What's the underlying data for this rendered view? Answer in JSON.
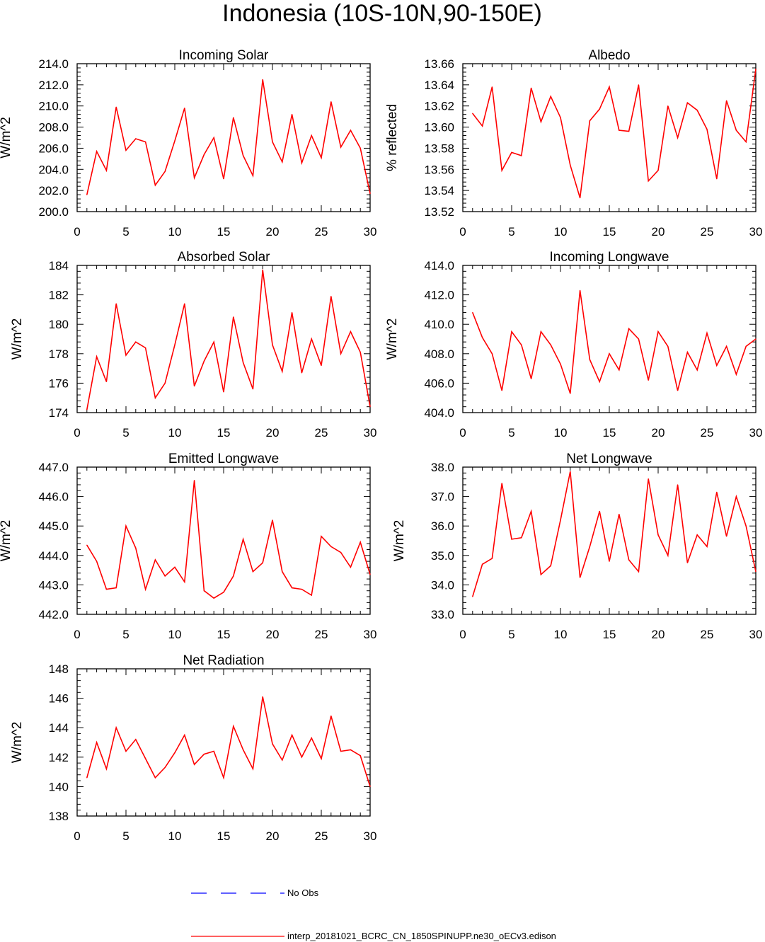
{
  "page_title": "Indonesia (10S-10N,90-150E)",
  "colors": {
    "model": "#ff0000",
    "obs": "#0000ff",
    "axis": "#000000"
  },
  "legend": {
    "obs_label": "No Obs",
    "model_label": "interp_20181021_BCRC_CN_1850SPINUPP.ne30_oECv3.edison"
  },
  "chart_data": [
    {
      "id": "incoming-solar",
      "type": "line",
      "title": "Incoming Solar",
      "xlabel": "",
      "ylabel": "W/m^2",
      "xlim": [
        0,
        30
      ],
      "ylim": [
        200,
        214
      ],
      "xticks": [
        "0",
        "5",
        "10",
        "15",
        "20",
        "25",
        "30"
      ],
      "yticks": [
        "200.0",
        "202.0",
        "204.0",
        "206.0",
        "208.0",
        "210.0",
        "212.0",
        "214.0"
      ],
      "series": [
        {
          "name": "interp_20181021_BCRC_CN_1850SPINUPP.ne30_oECv3.edison",
          "x": [
            1,
            2,
            3,
            4,
            5,
            6,
            7,
            8,
            9,
            10,
            11,
            12,
            13,
            14,
            15,
            16,
            17,
            18,
            19,
            20,
            21,
            22,
            23,
            24,
            25,
            26,
            27,
            28,
            29,
            30
          ],
          "values": [
            201.6,
            205.7,
            203.9,
            209.9,
            205.8,
            206.9,
            206.6,
            202.5,
            203.8,
            206.7,
            209.8,
            203.2,
            205.4,
            207.0,
            203.1,
            208.9,
            205.3,
            203.4,
            212.5,
            206.6,
            204.7,
            209.2,
            204.6,
            207.2,
            205.1,
            210.4,
            206.1,
            207.7,
            206.0,
            201.7
          ]
        }
      ]
    },
    {
      "id": "albedo",
      "type": "line",
      "title": "Albedo",
      "xlabel": "",
      "ylabel": "% reflected",
      "xlim": [
        0,
        30
      ],
      "ylim": [
        13.52,
        13.66
      ],
      "xticks": [
        "0",
        "5",
        "10",
        "15",
        "20",
        "25",
        "30"
      ],
      "yticks": [
        "13.52",
        "13.54",
        "13.56",
        "13.58",
        "13.60",
        "13.62",
        "13.64",
        "13.66"
      ],
      "series": [
        {
          "name": "interp_20181021_BCRC_CN_1850SPINUPP.ne30_oECv3.edison",
          "x": [
            1,
            2,
            3,
            4,
            5,
            6,
            7,
            8,
            9,
            10,
            11,
            12,
            13,
            14,
            15,
            16,
            17,
            18,
            19,
            20,
            21,
            22,
            23,
            24,
            25,
            26,
            27,
            28,
            29,
            30
          ],
          "values": [
            13.613,
            13.601,
            13.638,
            13.559,
            13.576,
            13.573,
            13.637,
            13.605,
            13.629,
            13.609,
            13.564,
            13.533,
            13.606,
            13.617,
            13.638,
            13.597,
            13.596,
            13.64,
            13.549,
            13.559,
            13.62,
            13.59,
            13.623,
            13.616,
            13.598,
            13.551,
            13.625,
            13.597,
            13.586,
            13.655
          ]
        }
      ]
    },
    {
      "id": "absorbed-solar",
      "type": "line",
      "title": "Absorbed Solar",
      "xlabel": "",
      "ylabel": "W/m^2",
      "xlim": [
        0,
        30
      ],
      "ylim": [
        174,
        184
      ],
      "xticks": [
        "0",
        "5",
        "10",
        "15",
        "20",
        "25",
        "30"
      ],
      "yticks": [
        "174",
        "176",
        "178",
        "180",
        "182",
        "184"
      ],
      "series": [
        {
          "name": "interp_20181021_BCRC_CN_1850SPINUPP.ne30_oECv3.edison",
          "x": [
            1,
            2,
            3,
            4,
            5,
            6,
            7,
            8,
            9,
            10,
            11,
            12,
            13,
            14,
            15,
            16,
            17,
            18,
            19,
            20,
            21,
            22,
            23,
            24,
            25,
            26,
            27,
            28,
            29,
            30
          ],
          "values": [
            174.2,
            177.8,
            176.1,
            181.4,
            177.9,
            178.8,
            178.4,
            175.0,
            176.0,
            178.6,
            181.4,
            175.8,
            177.5,
            178.8,
            175.4,
            180.5,
            177.4,
            175.6,
            183.7,
            178.6,
            176.8,
            180.8,
            176.7,
            179.0,
            177.2,
            181.9,
            178.0,
            179.5,
            178.1,
            174.4
          ]
        }
      ]
    },
    {
      "id": "incoming-longwave",
      "type": "line",
      "title": "Incoming Longwave",
      "xlabel": "",
      "ylabel": "W/m^2",
      "xlim": [
        0,
        30
      ],
      "ylim": [
        404,
        414
      ],
      "xticks": [
        "0",
        "5",
        "10",
        "15",
        "20",
        "25",
        "30"
      ],
      "yticks": [
        "404.0",
        "406.0",
        "408.0",
        "410.0",
        "412.0",
        "414.0"
      ],
      "series": [
        {
          "name": "interp_20181021_BCRC_CN_1850SPINUPP.ne30_oECv3.edison",
          "x": [
            1,
            2,
            3,
            4,
            5,
            6,
            7,
            8,
            9,
            10,
            11,
            12,
            13,
            14,
            15,
            16,
            17,
            18,
            19,
            20,
            21,
            22,
            23,
            24,
            25,
            26,
            27,
            28,
            29,
            30
          ],
          "values": [
            410.8,
            409.1,
            408.0,
            405.5,
            409.5,
            408.6,
            406.3,
            409.5,
            408.6,
            407.3,
            405.3,
            412.3,
            407.6,
            406.1,
            408.0,
            406.9,
            409.7,
            409.0,
            406.2,
            409.5,
            408.5,
            405.5,
            408.1,
            406.9,
            409.4,
            407.2,
            408.5,
            406.6,
            408.5,
            409.0
          ]
        }
      ]
    },
    {
      "id": "emitted-longwave",
      "type": "line",
      "title": "Emitted Longwave",
      "xlabel": "",
      "ylabel": "W/m^2",
      "xlim": [
        0,
        30
      ],
      "ylim": [
        442,
        447
      ],
      "xticks": [
        "0",
        "5",
        "10",
        "15",
        "20",
        "25",
        "30"
      ],
      "yticks": [
        "442.0",
        "443.0",
        "444.0",
        "445.0",
        "446.0",
        "447.0"
      ],
      "series": [
        {
          "name": "interp_20181021_BCRC_CN_1850SPINUPP.ne30_oECv3.edison",
          "x": [
            1,
            2,
            3,
            4,
            5,
            6,
            7,
            8,
            9,
            10,
            11,
            12,
            13,
            14,
            15,
            16,
            17,
            18,
            19,
            20,
            21,
            22,
            23,
            24,
            25,
            26,
            27,
            28,
            29,
            30
          ],
          "values": [
            444.35,
            443.8,
            442.85,
            442.9,
            445.0,
            444.25,
            442.85,
            443.85,
            443.3,
            443.6,
            443.1,
            446.55,
            442.8,
            442.55,
            442.75,
            443.3,
            444.55,
            443.45,
            443.75,
            445.2,
            443.45,
            442.9,
            442.85,
            442.65,
            444.65,
            444.3,
            444.1,
            443.6,
            444.45,
            443.35
          ]
        }
      ]
    },
    {
      "id": "net-longwave",
      "type": "line",
      "title": "Net Longwave",
      "xlabel": "",
      "ylabel": "W/m^2",
      "xlim": [
        0,
        30
      ],
      "ylim": [
        33,
        38
      ],
      "xticks": [
        "0",
        "5",
        "10",
        "15",
        "20",
        "25",
        "30"
      ],
      "yticks": [
        "33.0",
        "34.0",
        "35.0",
        "36.0",
        "37.0",
        "38.0"
      ],
      "series": [
        {
          "name": "interp_20181021_BCRC_CN_1850SPINUPP.ne30_oECv3.edison",
          "x": [
            1,
            2,
            3,
            4,
            5,
            6,
            7,
            8,
            9,
            10,
            11,
            12,
            13,
            14,
            15,
            16,
            17,
            18,
            19,
            20,
            21,
            22,
            23,
            24,
            25,
            26,
            27,
            28,
            29,
            30
          ],
          "values": [
            33.6,
            34.7,
            34.9,
            37.45,
            35.55,
            35.6,
            36.5,
            34.35,
            34.65,
            36.2,
            37.85,
            34.25,
            35.3,
            36.5,
            34.8,
            36.4,
            34.85,
            34.45,
            37.6,
            35.7,
            35.0,
            37.4,
            34.75,
            35.7,
            35.3,
            37.15,
            35.65,
            37.0,
            36.0,
            34.45
          ]
        }
      ]
    },
    {
      "id": "net-radiation",
      "type": "line",
      "title": "Net Radiation",
      "xlabel": "",
      "ylabel": "W/m^2",
      "xlim": [
        0,
        30
      ],
      "ylim": [
        138,
        148
      ],
      "xticks": [
        "0",
        "5",
        "10",
        "15",
        "20",
        "25",
        "30"
      ],
      "yticks": [
        "138",
        "140",
        "142",
        "144",
        "146",
        "148"
      ],
      "series": [
        {
          "name": "interp_20181021_BCRC_CN_1850SPINUPP.ne30_oECv3.edison",
          "x": [
            1,
            2,
            3,
            4,
            5,
            6,
            7,
            8,
            9,
            10,
            11,
            12,
            13,
            14,
            15,
            16,
            17,
            18,
            19,
            20,
            21,
            22,
            23,
            24,
            25,
            26,
            27,
            28,
            29,
            30
          ],
          "values": [
            140.6,
            143.0,
            141.2,
            144.0,
            142.4,
            143.2,
            141.9,
            140.6,
            141.3,
            142.3,
            143.5,
            141.5,
            142.2,
            142.4,
            140.6,
            144.1,
            142.5,
            141.2,
            146.1,
            142.9,
            141.8,
            143.5,
            142.0,
            143.3,
            141.9,
            144.8,
            142.4,
            142.5,
            142.1,
            140.0
          ]
        }
      ]
    }
  ]
}
